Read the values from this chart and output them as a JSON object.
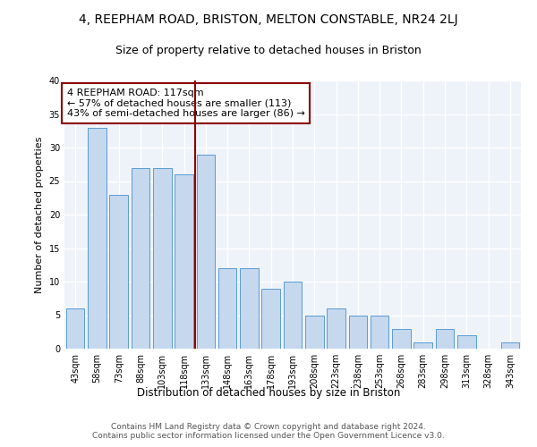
{
  "title": "4, REEPHAM ROAD, BRISTON, MELTON CONSTABLE, NR24 2LJ",
  "subtitle": "Size of property relative to detached houses in Briston",
  "xlabel": "Distribution of detached houses by size in Briston",
  "ylabel": "Number of detached properties",
  "categories": [
    "43sqm",
    "58sqm",
    "73sqm",
    "88sqm",
    "103sqm",
    "118sqm",
    "133sqm",
    "148sqm",
    "163sqm",
    "178sqm",
    "193sqm",
    "208sqm",
    "223sqm",
    "238sqm",
    "253sqm",
    "268sqm",
    "283sqm",
    "298sqm",
    "313sqm",
    "328sqm",
    "343sqm"
  ],
  "values": [
    6,
    33,
    23,
    27,
    27,
    26,
    29,
    12,
    12,
    9,
    10,
    5,
    6,
    5,
    5,
    3,
    1,
    3,
    2,
    0,
    1
  ],
  "bar_color": "#c5d8ed",
  "bar_edge_color": "#5b9bd5",
  "vline_x": 5.5,
  "vline_color": "#8b0000",
  "annotation_text": "4 REEPHAM ROAD: 117sqm\n← 57% of detached houses are smaller (113)\n43% of semi-detached houses are larger (86) →",
  "annotation_box_color": "#ffffff",
  "annotation_box_edge_color": "#8b0000",
  "ylim": [
    0,
    40
  ],
  "yticks": [
    0,
    5,
    10,
    15,
    20,
    25,
    30,
    35,
    40
  ],
  "background_color": "#eef2f9",
  "grid_color": "#ffffff",
  "footer_text": "Contains HM Land Registry data © Crown copyright and database right 2024.\nContains public sector information licensed under the Open Government Licence v3.0.",
  "title_fontsize": 10,
  "subtitle_fontsize": 9,
  "xlabel_fontsize": 8.5,
  "ylabel_fontsize": 8,
  "annotation_fontsize": 8,
  "tick_fontsize": 7,
  "footer_fontsize": 6.5
}
